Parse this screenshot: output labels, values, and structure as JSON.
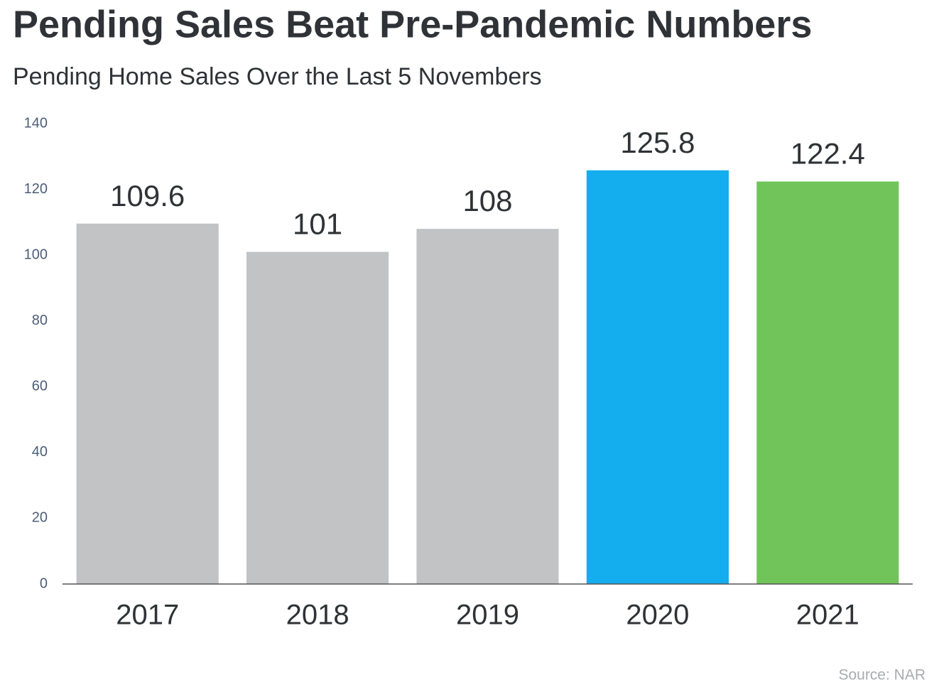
{
  "chart_data": {
    "type": "bar",
    "title": "Pending Sales Beat Pre-Pandemic Numbers",
    "subtitle": "Pending Home Sales Over the Last 5 Novembers",
    "categories": [
      "2017",
      "2018",
      "2019",
      "2020",
      "2021"
    ],
    "values": [
      109.6,
      101,
      108,
      125.8,
      122.4
    ],
    "colors": [
      "#c2c3c5",
      "#c2c3c5",
      "#c2c3c5",
      "#14adee",
      "#71c45a"
    ],
    "ylim": [
      0,
      140
    ],
    "yticks": [
      0,
      20,
      40,
      60,
      80,
      100,
      120,
      140
    ],
    "grid": false,
    "source": "Source: NAR"
  }
}
